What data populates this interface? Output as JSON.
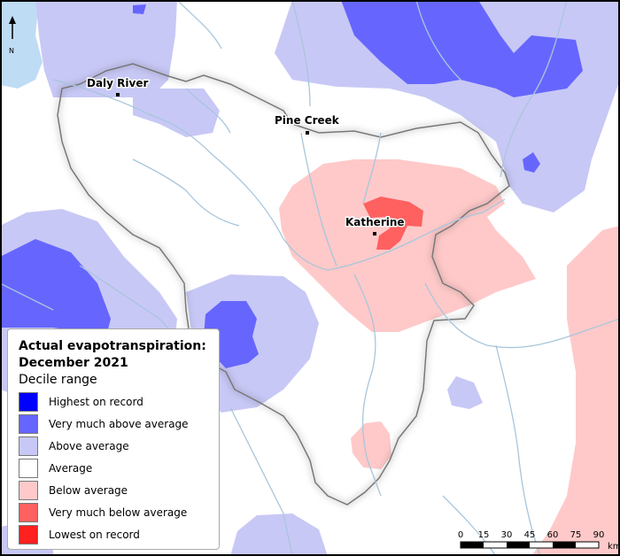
{
  "legend": {
    "title": "Actual evapotranspiration:\nDecember 2021",
    "subtitle": "Decile range",
    "items": [
      {
        "label": "Highest on record",
        "color": "#0000ff"
      },
      {
        "label": "Very much above average",
        "color": "#6666ff"
      },
      {
        "label": "Above average",
        "color": "#c8c8f6"
      },
      {
        "label": "Average",
        "color": "#ffffff"
      },
      {
        "label": "Below average",
        "color": "#ffc9c9"
      },
      {
        "label": "Very much below average",
        "color": "#ff6060"
      },
      {
        "label": "Lowest on record",
        "color": "#ff2020"
      }
    ]
  },
  "places": {
    "daly_river": "Daly River",
    "pine_creek": "Pine Creek",
    "katherine": "Katherine"
  },
  "north_arrow": {
    "label": "N"
  },
  "scale_bar": {
    "ticks": [
      "0",
      "15",
      "30",
      "45",
      "60",
      "75",
      "90"
    ],
    "unit": "km"
  },
  "colors": {
    "sea": "#bfdcf5",
    "river": "#a8c6dc",
    "region_border": "#777777"
  }
}
